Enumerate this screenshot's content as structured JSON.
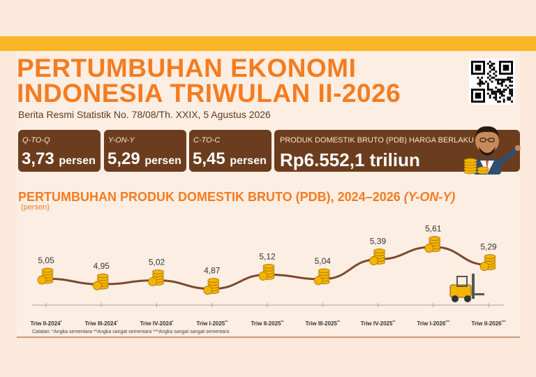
{
  "header": {
    "title_line1": "PERTUMBUHAN EKONOMI",
    "title_line2": "INDONESIA TRIWULAN II-2026",
    "subtitle": "Berita Resmi Statistik No. 78/08/Th. XXIX, 5 Agustus 2026"
  },
  "cards": [
    {
      "label": "Q-TO-Q",
      "value": "3,73",
      "unit": "persen"
    },
    {
      "label": "Y-ON-Y",
      "value": "5,29",
      "unit": "persen"
    },
    {
      "label": "C-TO-C",
      "value": "5,45",
      "unit": "persen"
    },
    {
      "label": "PRODUK DOMESTIK BRUTO (PDB) HARGA BERLAKU",
      "value": "Rp6.552,1 triliun"
    }
  ],
  "chart_section": {
    "title_main": "PERTUMBUHAN PRODUK DOMESTIK BRUTO (PDB), 2024–2026 ",
    "title_italic": "(Y-ON-Y)",
    "unit": "(persen)",
    "notes": "Catatan: *Angka sementara    **Angka sangat sementara    ***Angka sangat sangat sementara"
  },
  "colors": {
    "accent": "#f47c20",
    "band": "#f9b524",
    "card": "#6b3d1e",
    "line": "#7a4a2c",
    "coin": "#f4b400"
  },
  "chart_data": {
    "type": "line",
    "title": "PERTUMBUHAN PRODUK DOMESTIK BRUTO (PDB), 2024–2026 (Y-ON-Y)",
    "ylabel": "(persen)",
    "categories": [
      "Triw II-2024",
      "Triw III-2024",
      "Triw IV-2024",
      "Triw I-2025",
      "Triw II-2025",
      "Triw III-2025",
      "Triw IV-2025",
      "Triw I-2026",
      "Triw II-2026"
    ],
    "superscripts": [
      "*",
      "*",
      "*",
      "**",
      "**",
      "**",
      "**",
      "***",
      "***"
    ],
    "values": [
      5.05,
      4.95,
      5.02,
      4.87,
      5.12,
      5.04,
      5.39,
      5.61,
      5.29
    ],
    "value_labels": [
      "5,05",
      "4,95",
      "5,02",
      "4,87",
      "5,12",
      "5,04",
      "5,39",
      "5,61",
      "5,29"
    ],
    "ylim": [
      4.3,
      5.9
    ],
    "grid": false
  }
}
